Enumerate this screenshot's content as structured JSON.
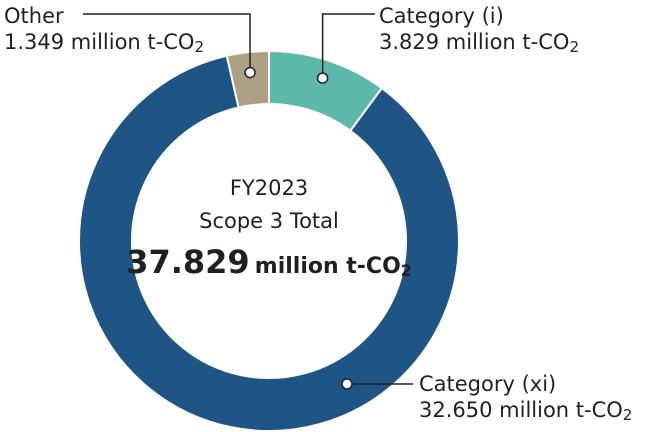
{
  "chart_data": {
    "type": "pie",
    "donut": true,
    "center": {
      "line1": "FY2023",
      "line2": "Scope 3 Total",
      "value": "37.829",
      "unit_prefix": "million t-CO",
      "unit_sub": "2"
    },
    "slices": [
      {
        "name": "Category (i)",
        "value": 3.829,
        "value_text": "3.829 million t-CO",
        "sub": "2",
        "color": "#5cb8ab"
      },
      {
        "name": "Category (xi)",
        "value": 32.65,
        "value_text": "32.650 million t-CO",
        "sub": "2",
        "color": "#1f5585"
      },
      {
        "name": "Other",
        "value": 1.349,
        "value_text": "1.349 million t-CO",
        "sub": "2",
        "color": "#ac9f83"
      }
    ],
    "legend": "none"
  }
}
